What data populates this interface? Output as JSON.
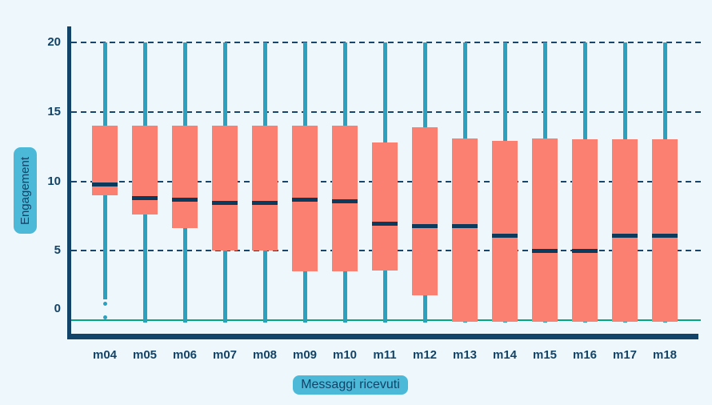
{
  "chart_data": {
    "type": "boxplot",
    "title": "",
    "xlabel": "Messaggi ricevuti",
    "ylabel": "Engagement",
    "y_ticks": [
      0,
      5,
      10,
      15,
      20
    ],
    "ylim": [
      0,
      20
    ],
    "grid": "horizontal dashed gridlines at 5, 10, 15, 20; solid green line at 0",
    "legend_position": "none",
    "categories": [
      "m04",
      "m05",
      "m06",
      "m07",
      "m08",
      "m09",
      "m10",
      "m11",
      "m12",
      "m13",
      "m14",
      "m15",
      "m16",
      "m17",
      "m18"
    ],
    "series": [
      {
        "label": "m04",
        "whisker_low": 1.7,
        "q1": 9.0,
        "median": 9.8,
        "q3": 14.0,
        "whisker_high": 20.0,
        "outliers": [
          1.2,
          0.2
        ]
      },
      {
        "label": "m05",
        "whisker_low": 0.0,
        "q1": 7.6,
        "median": 8.8,
        "q3": 14.0,
        "whisker_high": 20.0,
        "outliers": []
      },
      {
        "label": "m06",
        "whisker_low": 0.0,
        "q1": 6.6,
        "median": 8.7,
        "q3": 14.0,
        "whisker_high": 20.0,
        "outliers": []
      },
      {
        "label": "m07",
        "whisker_low": 0.0,
        "q1": 5.0,
        "median": 8.5,
        "q3": 14.0,
        "whisker_high": 20.0,
        "outliers": []
      },
      {
        "label": "m08",
        "whisker_low": 0.0,
        "q1": 5.0,
        "median": 8.5,
        "q3": 14.0,
        "whisker_high": 20.0,
        "outliers": []
      },
      {
        "label": "m09",
        "whisker_low": 0.0,
        "q1": 3.5,
        "median": 8.7,
        "q3": 14.0,
        "whisker_high": 20.0,
        "outliers": []
      },
      {
        "label": "m10",
        "whisker_low": 0.0,
        "q1": 3.5,
        "median": 8.6,
        "q3": 14.0,
        "whisker_high": 20.0,
        "outliers": []
      },
      {
        "label": "m11",
        "whisker_low": 0.0,
        "q1": 3.6,
        "median": 7.0,
        "q3": 12.8,
        "whisker_high": 20.0,
        "outliers": []
      },
      {
        "label": "m12",
        "whisker_low": 0.0,
        "q1": 1.8,
        "median": 6.8,
        "q3": 13.9,
        "whisker_high": 20.0,
        "outliers": []
      },
      {
        "label": "m13",
        "whisker_low": 0.0,
        "q1": 0.0,
        "median": 6.8,
        "q3": 13.1,
        "whisker_high": 20.0,
        "outliers": []
      },
      {
        "label": "m14",
        "whisker_low": 0.0,
        "q1": 0.0,
        "median": 6.1,
        "q3": 12.9,
        "whisker_high": 20.0,
        "outliers": []
      },
      {
        "label": "m15",
        "whisker_low": 0.0,
        "q1": 0.0,
        "median": 5.0,
        "q3": 13.1,
        "whisker_high": 20.0,
        "outliers": []
      },
      {
        "label": "m16",
        "whisker_low": 0.0,
        "q1": 0.0,
        "median": 5.0,
        "q3": 13.0,
        "whisker_high": 20.0,
        "outliers": []
      },
      {
        "label": "m17",
        "whisker_low": 0.0,
        "q1": 0.0,
        "median": 6.1,
        "q3": 13.0,
        "whisker_high": 20.0,
        "outliers": []
      },
      {
        "label": "m18",
        "whisker_low": 0.0,
        "q1": 0.0,
        "median": 6.1,
        "q3": 13.0,
        "whisker_high": 20.0,
        "outliers": []
      }
    ]
  },
  "colors": {
    "background": "#EEF8FC",
    "box_fill": "#FB8072",
    "median": "#0C3A5D",
    "whisker": "#2BA0BF",
    "zero_line": "#00A97E",
    "gridline": "#16466E",
    "axis_and_text": "#124368",
    "label_pill_bg": "#4CB9D9"
  }
}
